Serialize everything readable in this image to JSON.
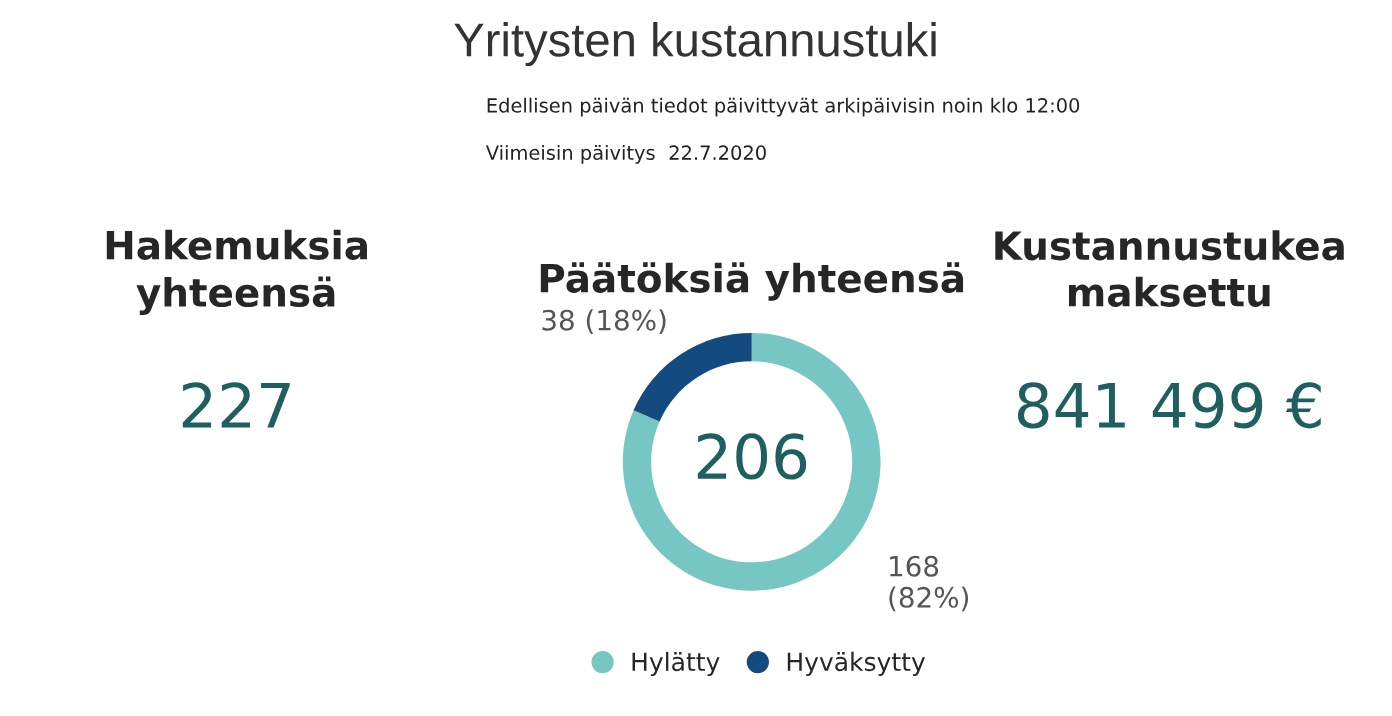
{
  "chart_data": [
    {
      "type": "other",
      "title": "Yritysten kustannustuki",
      "subtitle": "Edellisen päivän tiedot päivittyvät arkipäivisin noin klo 12:00",
      "annotations": [
        "Viimeisin päivitys",
        "22.7.2020"
      ]
    },
    {
      "type": "other",
      "title": "Hakemuksia\nyhteensä",
      "annotations": [
        "227"
      ]
    },
    {
      "type": "donut",
      "title": "Päätöksiä yhteensä",
      "categories": [
        "Hylätty",
        "Hyväksytty"
      ],
      "values": [
        168,
        38
      ],
      "colors": [
        "#76c6c3",
        "#134a80"
      ],
      "value_labels": [
        "168\n(82%)",
        "38 (18%)"
      ],
      "annotations": [
        "206"
      ],
      "legend": "bottom"
    },
    {
      "type": "other",
      "title": "Kustannustukea\nmaksettu",
      "annotations": [
        "841 499 €"
      ]
    }
  ]
}
